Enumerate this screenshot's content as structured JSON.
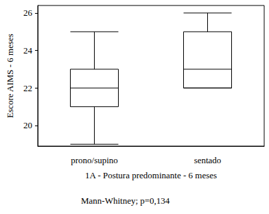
{
  "chart_data": {
    "type": "boxplot",
    "xlabel": "1A - Postura predominante - 6 meses",
    "ylabel": "Escore AIMS - 6 meses",
    "annotation": "Mann-Whitney; p=0,134",
    "categories": [
      "prono/supino",
      "sentado"
    ],
    "values": [
      [
        19,
        21,
        22,
        23,
        25
      ],
      [
        22,
        22,
        23,
        25,
        26
      ]
    ],
    "color": "#000000",
    "ylim": [
      18.9,
      26.4
    ],
    "yticks": [
      20,
      22,
      24,
      26
    ],
    "grid": false
  }
}
